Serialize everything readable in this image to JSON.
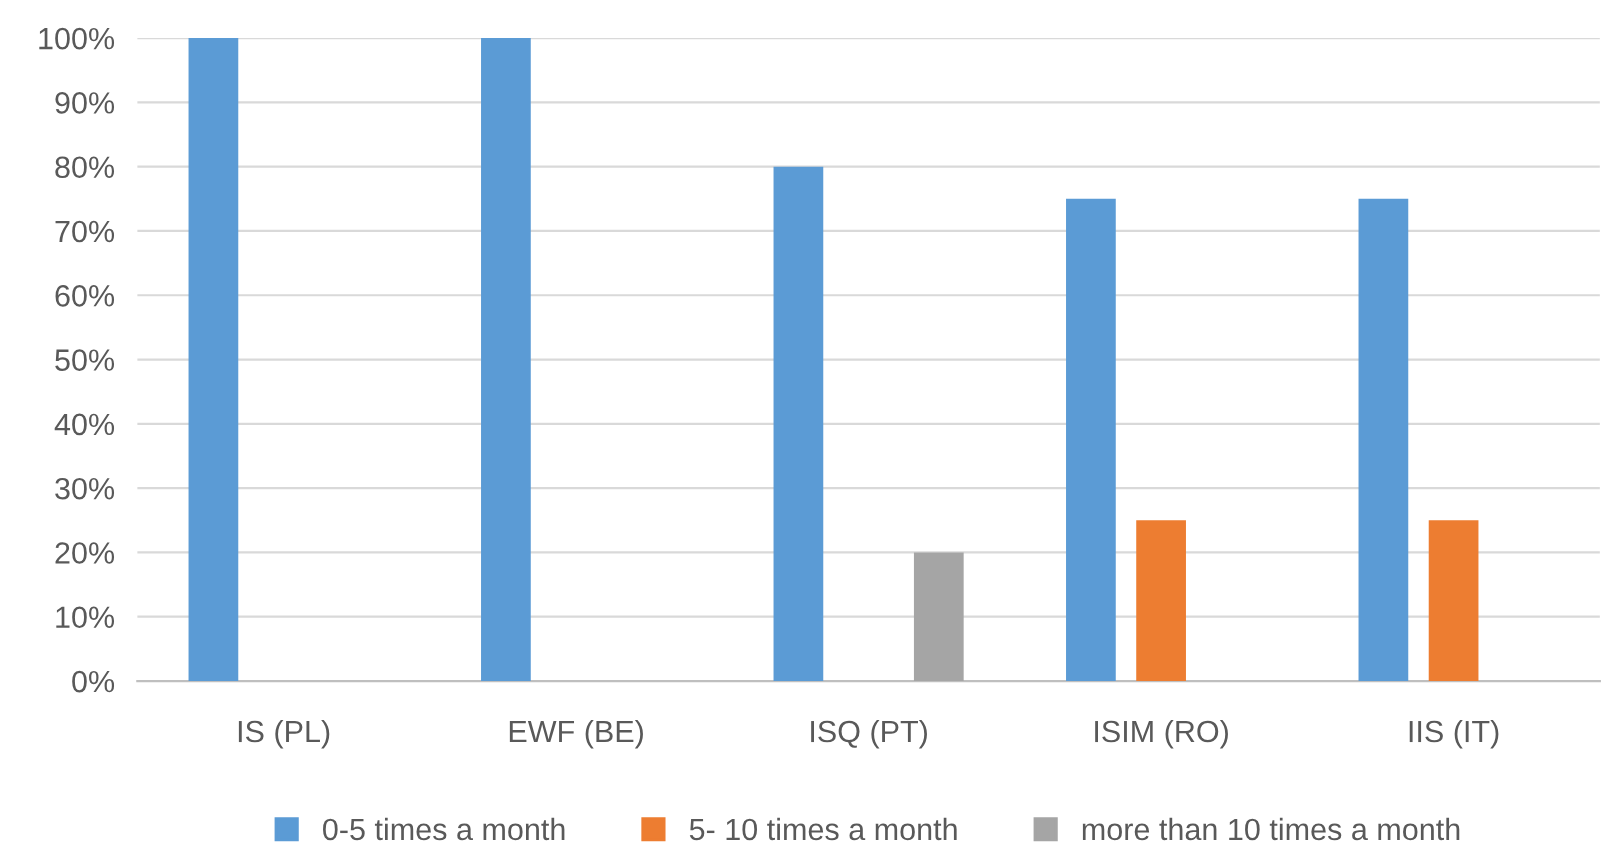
{
  "chart_data": {
    "type": "bar",
    "categories": [
      "IS (PL)",
      "EWF (BE)",
      "ISQ (PT)",
      "ISIM (RO)",
      "IIS (IT)"
    ],
    "series": [
      {
        "name": "0-5 times a month",
        "color": "#5b9bd5",
        "values": [
          100,
          100,
          80,
          75,
          75
        ]
      },
      {
        "name": "5- 10 times a month",
        "color": "#ed7d31",
        "values": [
          0,
          0,
          0,
          25,
          25
        ]
      },
      {
        "name": "more than 10 times a month",
        "color": "#a5a5a5",
        "values": [
          0,
          0,
          20,
          0,
          0
        ]
      }
    ],
    "ylim": [
      0,
      100
    ],
    "yticks": [
      {
        "value": 0,
        "label": "0%"
      },
      {
        "value": 10,
        "label": "10%"
      },
      {
        "value": 20,
        "label": "20%"
      },
      {
        "value": 30,
        "label": "30%"
      },
      {
        "value": 40,
        "label": "40%"
      },
      {
        "value": 50,
        "label": "50%"
      },
      {
        "value": 60,
        "label": "60%"
      },
      {
        "value": 70,
        "label": "70%"
      },
      {
        "value": 80,
        "label": "80%"
      },
      {
        "value": 90,
        "label": "90%"
      },
      {
        "value": 100,
        "label": "100%"
      }
    ],
    "grid": "y",
    "legend": "bottom"
  }
}
